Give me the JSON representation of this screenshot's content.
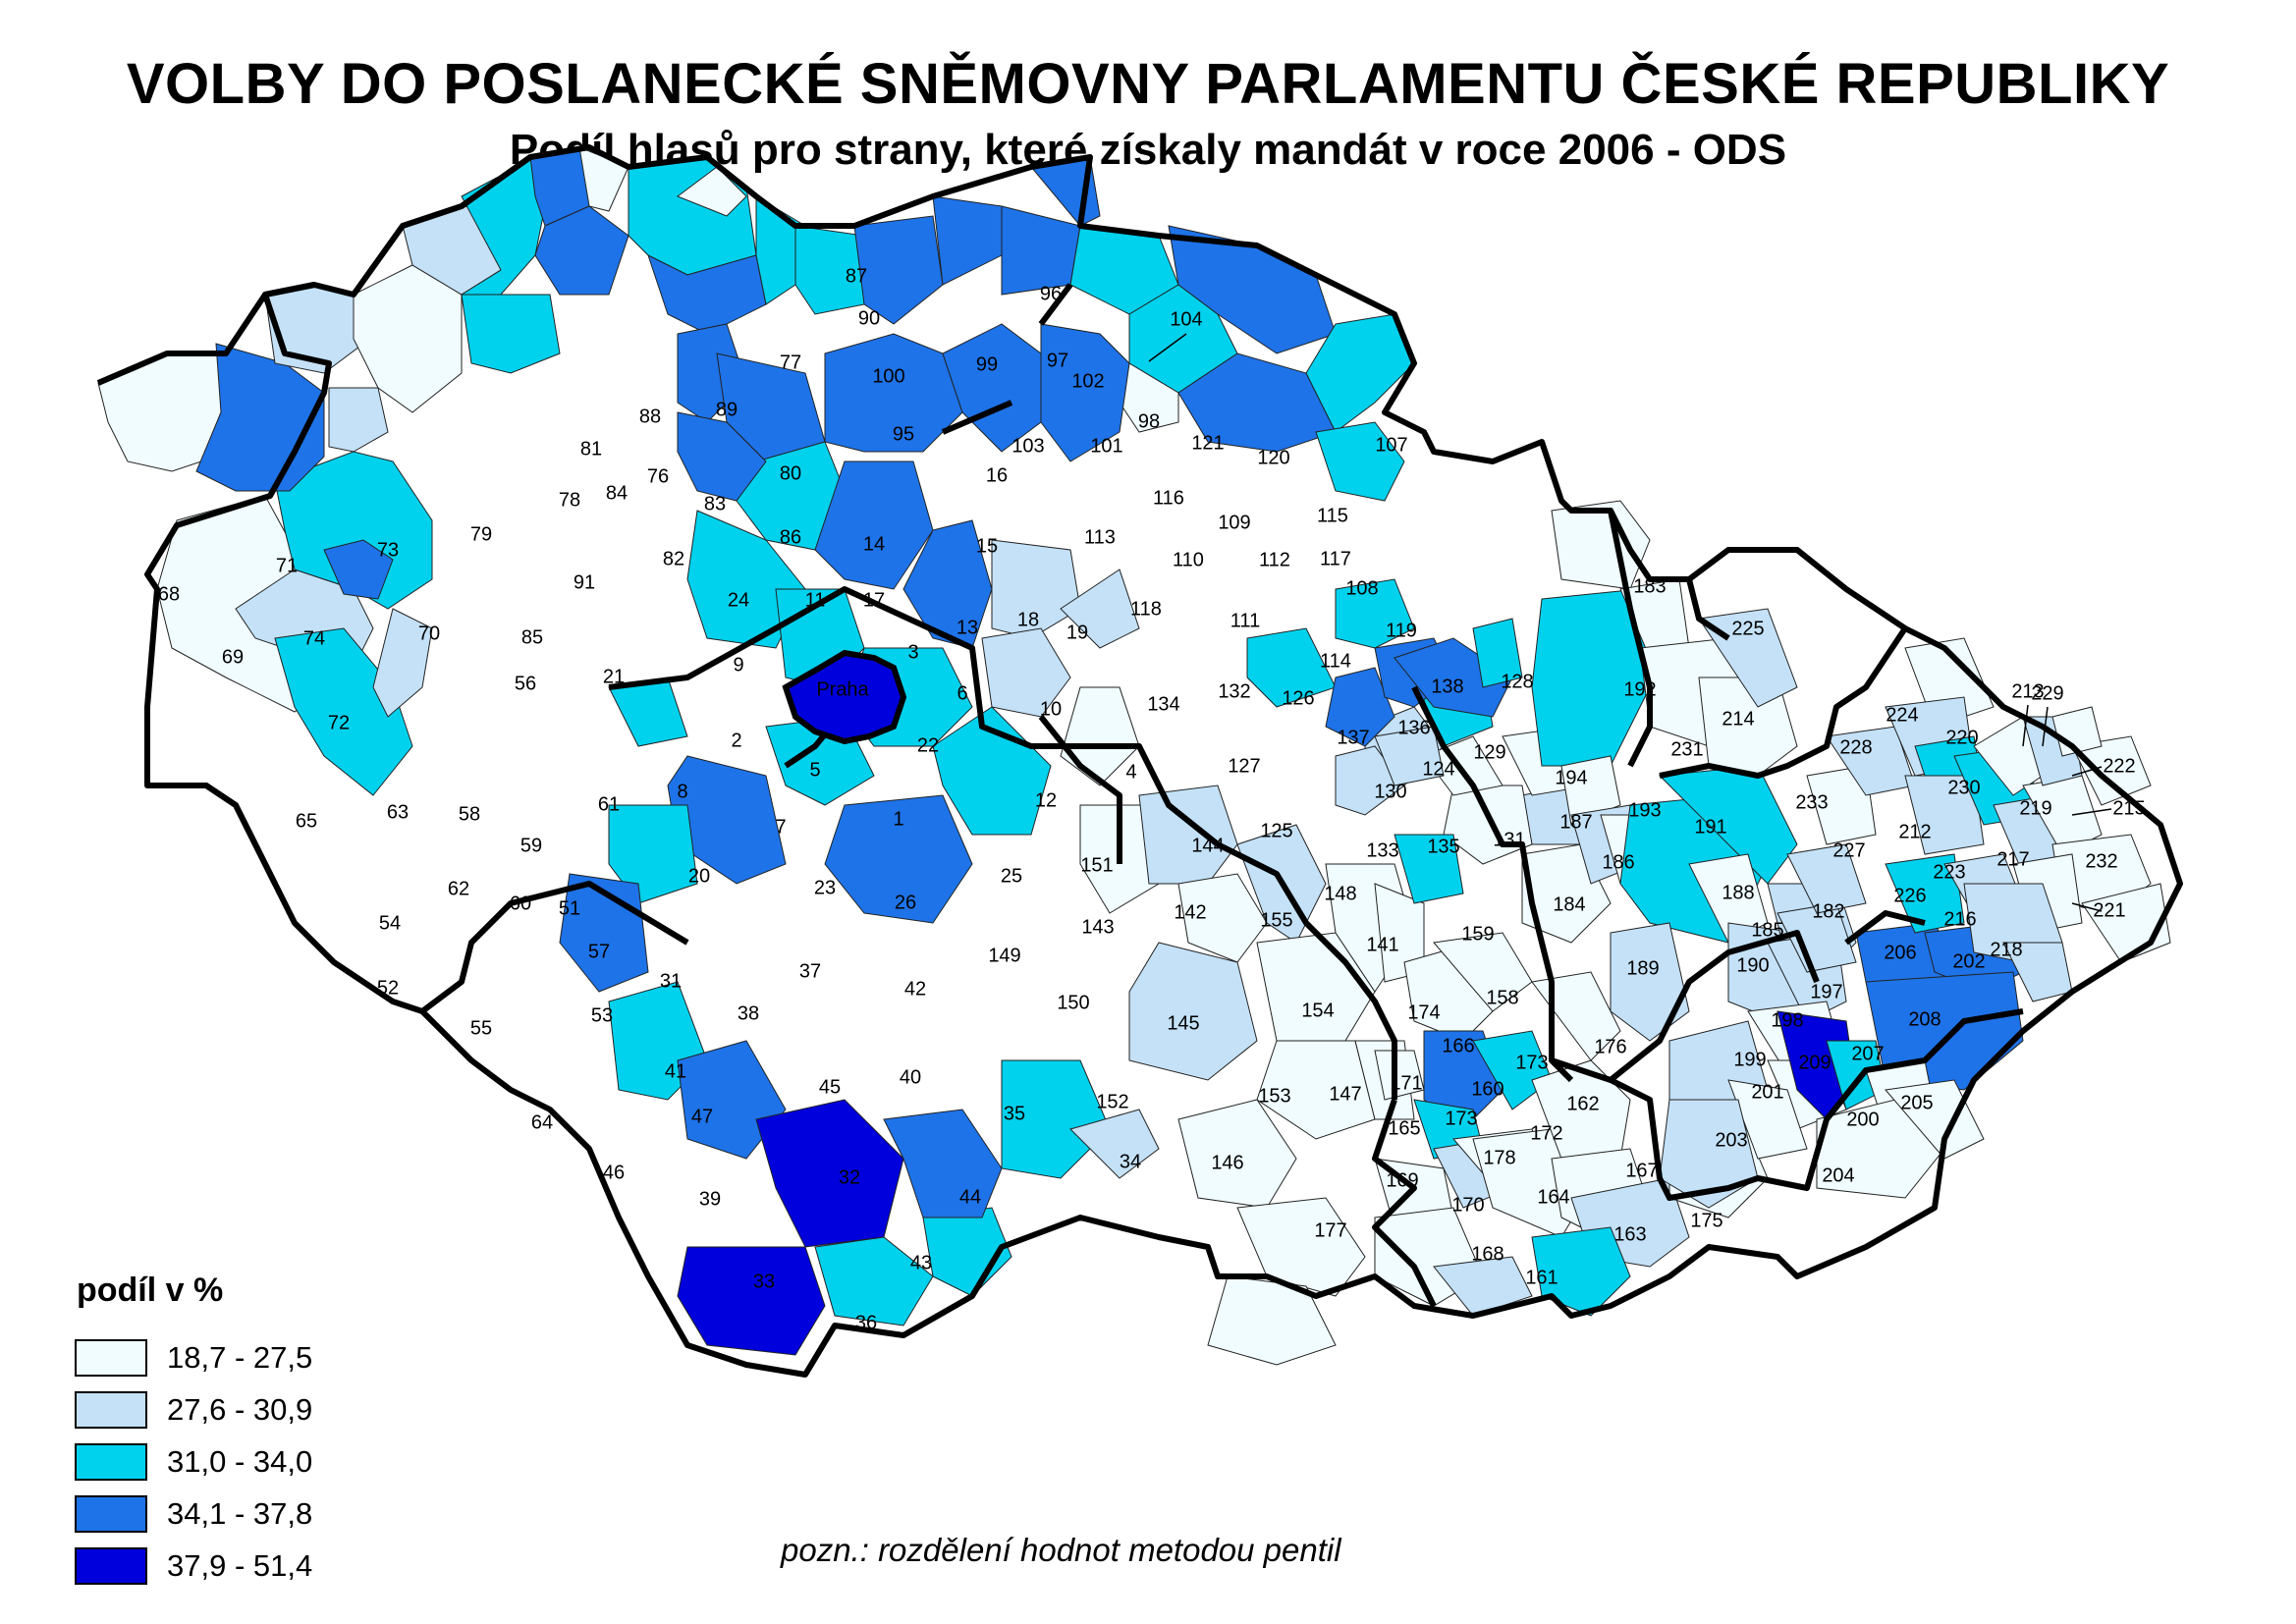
{
  "title": "VOLBY DO POSLANECKÉ SNĚMOVNY PARLAMENTU ČESKÉ REPUBLIKY",
  "subtitle": "Podíl hlasů pro strany, které získaly mandát v roce 2006 - ODS",
  "legend": {
    "title": "podíl v %",
    "classes": [
      {
        "label": "18,7 - 27,5",
        "color": "#f0fcff"
      },
      {
        "label": "27,6 - 30,9",
        "color": "#c4e1f7"
      },
      {
        "label": "31,0 - 34,0",
        "color": "#00d2ee"
      },
      {
        "label": "34,1 - 37,8",
        "color": "#1e73e8"
      },
      {
        "label": "37,9 - 51,4",
        "color": "#0000dc"
      }
    ]
  },
  "note": "pozn.: rozdělení hodnot metodou pentil",
  "map": {
    "capital_label": "Praha",
    "district_labels": [
      "1",
      "2",
      "3",
      "4",
      "5",
      "6",
      "7",
      "8",
      "9",
      "10",
      "11",
      "12",
      "13",
      "14",
      "15",
      "16",
      "17",
      "18",
      "19",
      "20",
      "21",
      "22",
      "23",
      "24",
      "25",
      "26",
      "31",
      "32",
      "33",
      "34",
      "35",
      "36",
      "37",
      "38",
      "39",
      "40",
      "41",
      "42",
      "43",
      "44",
      "45",
      "46",
      "47",
      "51",
      "52",
      "53",
      "54",
      "55",
      "56",
      "57",
      "58",
      "59",
      "60",
      "61",
      "62",
      "63",
      "64",
      "65",
      "68",
      "69",
      "70",
      "71",
      "72",
      "73",
      "74",
      "76",
      "77",
      "78",
      "79",
      "80",
      "81",
      "82",
      "83",
      "84",
      "85",
      "86",
      "87",
      "88",
      "89",
      "90",
      "91",
      "95",
      "96",
      "97",
      "98",
      "99",
      "100",
      "101",
      "102",
      "103",
      "104",
      "107",
      "108",
      "109",
      "110",
      "111",
      "112",
      "113",
      "114",
      "115",
      "116",
      "117",
      "118",
      "119",
      "120",
      "121",
      "124",
      "125",
      "126",
      "127",
      "128",
      "129",
      "130",
      "131",
      "132",
      "133",
      "134",
      "135",
      "136",
      "137",
      "138",
      "141",
      "142",
      "143",
      "144",
      "145",
      "146",
      "147",
      "148",
      "149",
      "150",
      "151",
      "152",
      "153",
      "154",
      "155",
      "158",
      "159",
      "160",
      "161",
      "162",
      "163",
      "164",
      "165",
      "166",
      "167",
      "168",
      "169",
      "170",
      "171",
      "172",
      "173",
      "173",
      "174",
      "175",
      "176",
      "177",
      "178",
      "182",
      "183",
      "184",
      "185",
      "186",
      "187",
      "188",
      "189",
      "190",
      "191",
      "192",
      "193",
      "194",
      "197",
      "198",
      "199",
      "200",
      "201",
      "202",
      "203",
      "204",
      "205",
      "206",
      "207",
      "208",
      "209",
      "212",
      "213",
      "214",
      "215",
      "216",
      "217",
      "218",
      "219",
      "220",
      "221",
      "222",
      "223",
      "224",
      "225",
      "226",
      "227",
      "228",
      "229",
      "230",
      "231",
      "232",
      "233"
    ]
  }
}
